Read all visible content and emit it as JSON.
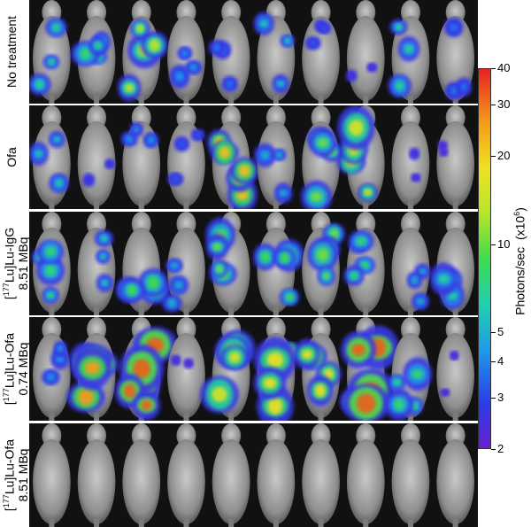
{
  "rows": [
    {
      "label_lines": [
        "No treatment"
      ],
      "label_html": "No treatment"
    },
    {
      "label_lines": [
        "Ofa"
      ],
      "label_html": "Ofa"
    },
    {
      "label_lines": [
        "[177Lu]Lu-IgG",
        "8.51 MBq"
      ],
      "label_html": "[<sup>177</sup>Lu]Lu-IgG<br>8.51 MBq"
    },
    {
      "label_lines": [
        "[177Lu]Lu-Ofa",
        "0.74 MBq"
      ],
      "label_html": "[<sup>177</sup>Lu]Lu-Ofa<br>0.74 MBq"
    },
    {
      "label_lines": [
        "[177Lu]Lu-Ofa",
        "8.51 MBq"
      ],
      "label_html": "[<sup>177</sup>Lu]Lu-Ofa<br>8.51 MBq"
    }
  ],
  "mice_per_row": 10,
  "colorbar": {
    "title": "Photons/sec (x10⁶)",
    "ticks": [
      "40",
      "30",
      "20",
      "10",
      "5",
      "4",
      "3",
      "2"
    ],
    "colors": {
      "low": "#6a1fd0",
      "mid": "#3fdc4a",
      "high": "#e82222"
    }
  },
  "signal_level": [
    [
      0.45,
      0.5,
      0.7,
      0.3,
      0.25,
      0.4,
      0.2,
      0.1,
      0.45,
      0.25
    ],
    [
      0.4,
      0.15,
      0.3,
      0.2,
      0.85,
      0.35,
      0.6,
      0.75,
      0.1,
      0.05
    ],
    [
      0.5,
      0.4,
      0.55,
      0.35,
      0.6,
      0.55,
      0.6,
      0.5,
      0.35,
      0.45
    ],
    [
      0.3,
      0.9,
      0.95,
      0.05,
      0.75,
      0.8,
      0.8,
      0.95,
      0.5,
      0.05
    ],
    [
      0,
      0,
      0,
      0,
      0,
      0,
      0,
      0,
      0,
      0
    ]
  ]
}
